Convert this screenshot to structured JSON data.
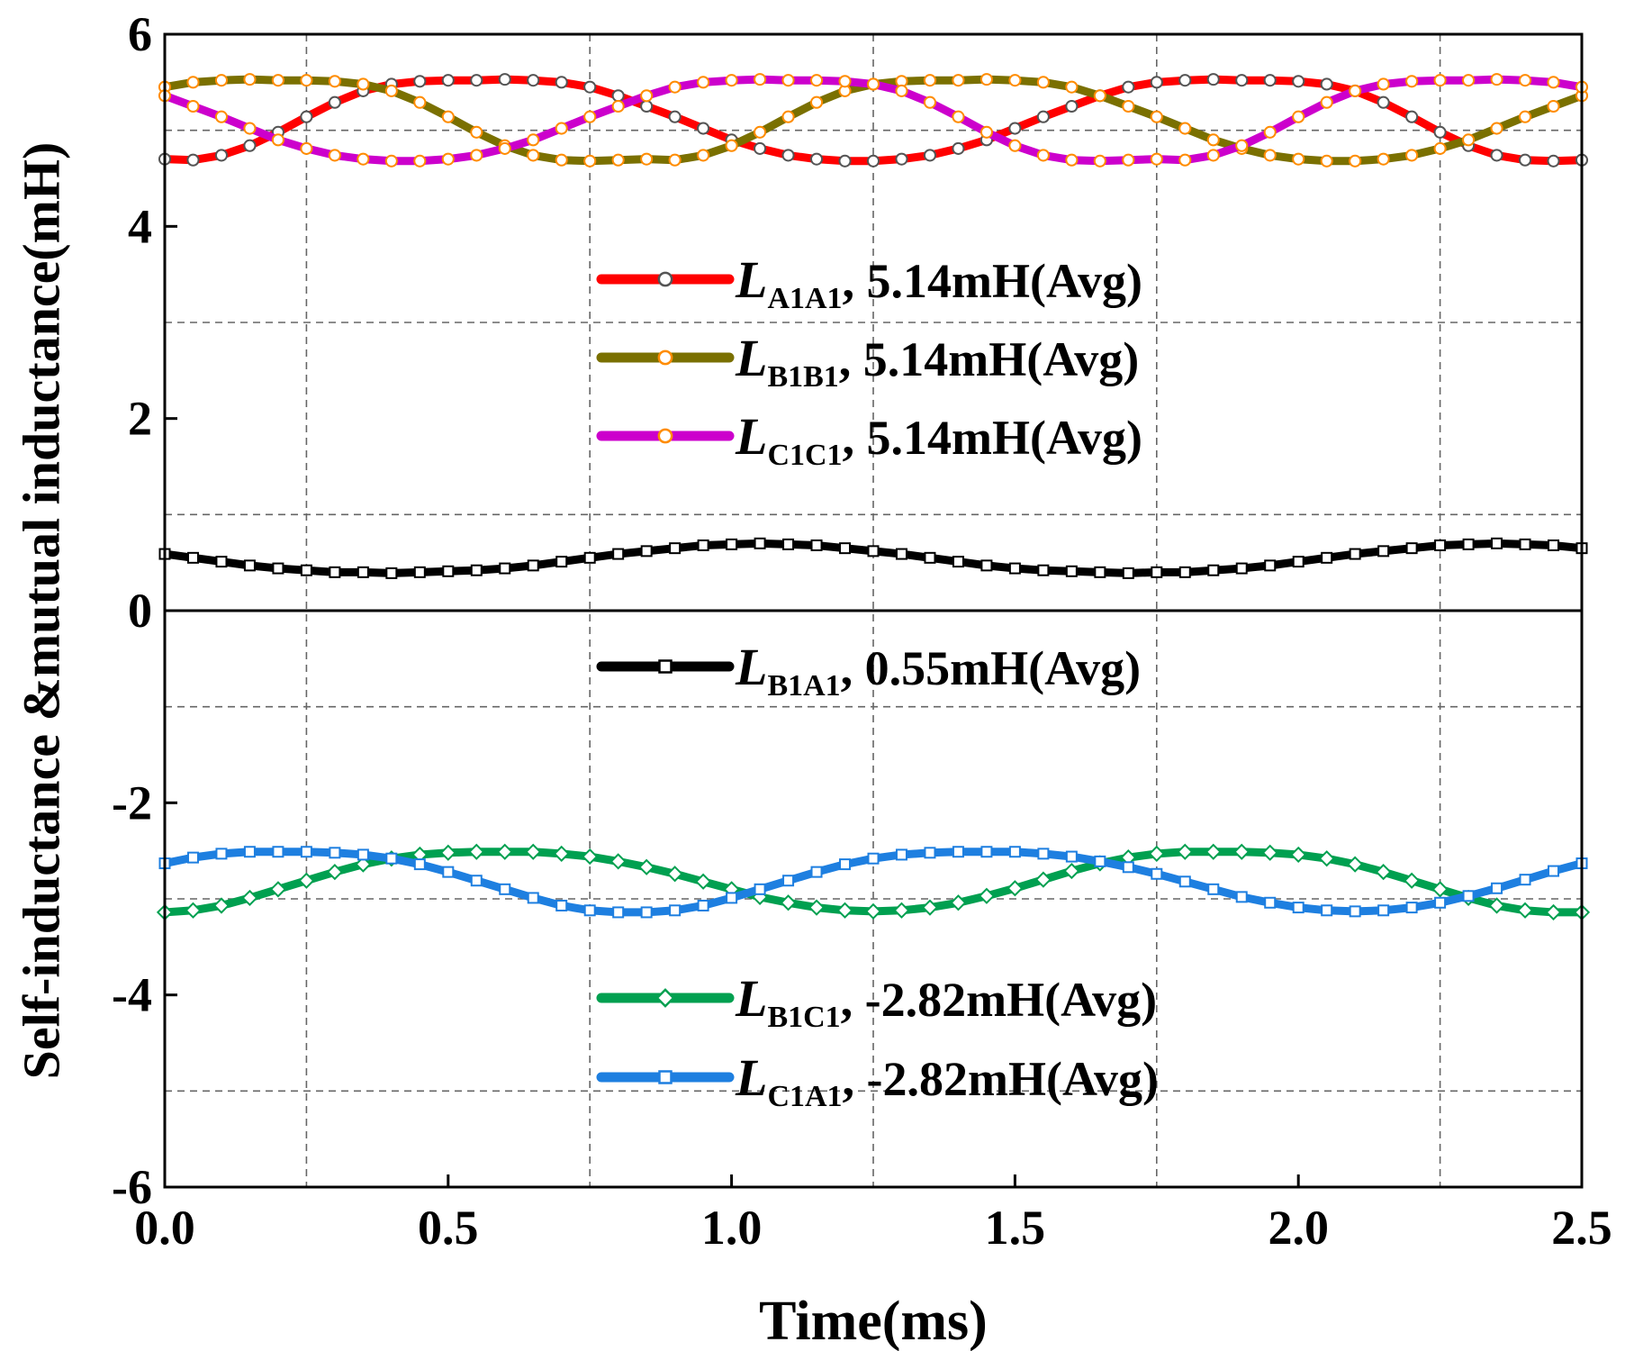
{
  "chart_data": {
    "type": "line",
    "title": "",
    "xlabel": "Time(ms)",
    "ylabel": "Self-inductance &mutual inductance(mH)",
    "xlim": [
      0,
      2.5
    ],
    "ylim": [
      -6,
      6
    ],
    "xticks": [
      0,
      0.5,
      1,
      1.5,
      2,
      2.5
    ],
    "xtick_labels": [
      "0.0",
      "0.5",
      "1.0",
      "1.5",
      "2.0",
      "2.5"
    ],
    "yticks": [
      -6,
      -4,
      -2,
      0,
      2,
      4,
      6
    ],
    "ytick_labels": [
      "-6",
      "-4",
      "-2",
      "0",
      "2",
      "4",
      "6"
    ],
    "grid": true,
    "x": [
      0.0,
      0.05,
      0.1,
      0.15,
      0.2,
      0.25,
      0.3,
      0.35,
      0.4,
      0.45,
      0.5,
      0.55,
      0.6,
      0.65,
      0.7,
      0.75,
      0.8,
      0.85,
      0.9,
      0.95,
      1.0,
      1.05,
      1.1,
      1.15,
      1.2,
      1.25,
      1.3,
      1.35,
      1.4,
      1.45,
      1.5,
      1.55,
      1.6,
      1.65,
      1.7,
      1.75,
      1.8,
      1.85,
      1.9,
      1.95,
      2.0,
      2.05,
      2.1,
      2.15,
      2.2,
      2.25,
      2.3,
      2.35,
      2.4,
      2.45,
      2.5
    ],
    "series": [
      {
        "name": "L_A1A1",
        "label_main": "L",
        "label_sub": "A1A1",
        "label_rest": ", 5.14mH(Avg)",
        "color": "#ff0000",
        "marker": "circle",
        "marker_stroke": "#555555",
        "marker_fill": "#ffffff",
        "values": [
          4.7,
          4.69,
          4.74,
          4.84,
          4.98,
          5.14,
          5.29,
          5.41,
          5.48,
          5.51,
          5.52,
          5.52,
          5.53,
          5.52,
          5.5,
          5.45,
          5.36,
          5.25,
          5.14,
          5.02,
          4.9,
          4.81,
          4.74,
          4.7,
          4.68,
          4.68,
          4.7,
          4.74,
          4.81,
          4.9,
          5.02,
          5.14,
          5.25,
          5.36,
          5.45,
          5.5,
          5.52,
          5.53,
          5.52,
          5.52,
          5.51,
          5.48,
          5.41,
          5.29,
          5.14,
          4.98,
          4.84,
          4.74,
          4.69,
          4.68,
          4.69
        ]
      },
      {
        "name": "L_B1B1",
        "label_main": "L",
        "label_sub": "B1B1",
        "label_rest": ", 5.14mH(Avg)",
        "color": "#7a7000",
        "marker": "circle",
        "marker_stroke": "#ff8c00",
        "marker_fill": "#ffffff",
        "values": [
          5.45,
          5.5,
          5.52,
          5.53,
          5.52,
          5.52,
          5.51,
          5.48,
          5.41,
          5.29,
          5.14,
          4.98,
          4.84,
          4.74,
          4.69,
          4.68,
          4.69,
          4.7,
          4.69,
          4.74,
          4.84,
          4.98,
          5.14,
          5.29,
          5.41,
          5.48,
          5.51,
          5.52,
          5.52,
          5.53,
          5.52,
          5.5,
          5.45,
          5.36,
          5.25,
          5.14,
          5.02,
          4.9,
          4.81,
          4.74,
          4.7,
          4.68,
          4.68,
          4.7,
          4.74,
          4.81,
          4.9,
          5.02,
          5.14,
          5.25,
          5.36
        ]
      },
      {
        "name": "L_C1C1",
        "label_main": "L",
        "label_sub": "C1C1",
        "label_rest": ", 5.14mH(Avg)",
        "color": "#cc00cc",
        "marker": "circle",
        "marker_stroke": "#ff8c00",
        "marker_fill": "#ffffff",
        "values": [
          5.36,
          5.25,
          5.14,
          5.02,
          4.9,
          4.81,
          4.74,
          4.7,
          4.68,
          4.68,
          4.7,
          4.74,
          4.81,
          4.9,
          5.02,
          5.14,
          5.25,
          5.36,
          5.45,
          5.5,
          5.52,
          5.53,
          5.52,
          5.52,
          5.51,
          5.48,
          5.41,
          5.29,
          5.14,
          4.98,
          4.84,
          4.74,
          4.69,
          4.68,
          4.69,
          4.7,
          4.69,
          4.74,
          4.84,
          4.98,
          5.14,
          5.29,
          5.41,
          5.48,
          5.51,
          5.52,
          5.52,
          5.53,
          5.52,
          5.5,
          5.45
        ]
      },
      {
        "name": "L_B1A1",
        "label_main": "L",
        "label_sub": "B1A1",
        "label_rest": ", 0.55mH(Avg)",
        "color": "#000000",
        "marker": "square",
        "marker_stroke": "#000000",
        "marker_fill": "#ffffff",
        "values": [
          0.59,
          0.55,
          0.51,
          0.47,
          0.44,
          0.42,
          0.4,
          0.4,
          0.39,
          0.4,
          0.41,
          0.42,
          0.44,
          0.47,
          0.51,
          0.55,
          0.59,
          0.62,
          0.65,
          0.68,
          0.69,
          0.7,
          0.69,
          0.68,
          0.65,
          0.62,
          0.59,
          0.55,
          0.51,
          0.47,
          0.44,
          0.42,
          0.41,
          0.4,
          0.39,
          0.4,
          0.4,
          0.42,
          0.44,
          0.47,
          0.51,
          0.55,
          0.59,
          0.62,
          0.65,
          0.68,
          0.69,
          0.7,
          0.69,
          0.68,
          0.65
        ]
      },
      {
        "name": "L_B1C1",
        "label_main": "L",
        "label_sub": "B1C1",
        "label_rest": ", -2.82mH(Avg)",
        "color": "#00a050",
        "marker": "diamond",
        "marker_stroke": "#00a050",
        "marker_fill": "#ffffff",
        "values": [
          -3.14,
          -3.12,
          -3.07,
          -2.99,
          -2.9,
          -2.81,
          -2.72,
          -2.64,
          -2.58,
          -2.54,
          -2.52,
          -2.51,
          -2.51,
          -2.51,
          -2.53,
          -2.56,
          -2.61,
          -2.67,
          -2.74,
          -2.82,
          -2.9,
          -2.98,
          -3.04,
          -3.09,
          -3.12,
          -3.13,
          -3.12,
          -3.09,
          -3.04,
          -2.97,
          -2.89,
          -2.8,
          -2.71,
          -2.63,
          -2.57,
          -2.53,
          -2.51,
          -2.51,
          -2.51,
          -2.52,
          -2.54,
          -2.58,
          -2.64,
          -2.72,
          -2.81,
          -2.9,
          -2.99,
          -3.07,
          -3.12,
          -3.14,
          -3.14
        ]
      },
      {
        "name": "L_C1A1",
        "label_main": "L",
        "label_sub": "C1A1",
        "label_rest": ", -2.82mH(Avg)",
        "color": "#1e7fe0",
        "marker": "square",
        "marker_stroke": "#1e7fe0",
        "marker_fill": "#ffffff",
        "values": [
          -2.63,
          -2.57,
          -2.53,
          -2.51,
          -2.51,
          -2.51,
          -2.52,
          -2.54,
          -2.58,
          -2.64,
          -2.72,
          -2.81,
          -2.9,
          -2.99,
          -3.07,
          -3.12,
          -3.14,
          -3.14,
          -3.12,
          -3.07,
          -2.99,
          -2.9,
          -2.81,
          -2.72,
          -2.64,
          -2.58,
          -2.54,
          -2.52,
          -2.51,
          -2.51,
          -2.51,
          -2.53,
          -2.56,
          -2.61,
          -2.67,
          -2.74,
          -2.82,
          -2.9,
          -2.98,
          -3.04,
          -3.09,
          -3.12,
          -3.13,
          -3.12,
          -3.09,
          -3.04,
          -2.97,
          -2.89,
          -2.8,
          -2.71,
          -2.63
        ]
      }
    ],
    "legend_groups": [
      {
        "placement": "upper-middle",
        "series": [
          "L_A1A1",
          "L_B1B1",
          "L_C1C1"
        ]
      },
      {
        "placement": "center",
        "series": [
          "L_B1A1"
        ]
      },
      {
        "placement": "lower-middle",
        "series": [
          "L_B1C1",
          "L_C1A1"
        ]
      }
    ]
  }
}
